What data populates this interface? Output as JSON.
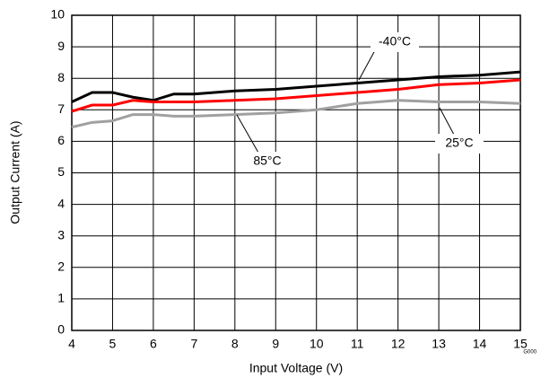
{
  "chart_data": {
    "type": "line",
    "x": [
      4,
      4.5,
      5,
      5.5,
      6,
      6.5,
      7,
      8,
      9,
      10,
      11,
      12,
      13,
      14,
      15
    ],
    "series": [
      {
        "name": "-40°C",
        "color": "#000000",
        "values": [
          7.25,
          7.55,
          7.55,
          7.4,
          7.3,
          7.5,
          7.5,
          7.6,
          7.65,
          7.75,
          7.85,
          7.95,
          8.05,
          8.1,
          8.2
        ]
      },
      {
        "name": "25°C",
        "color": "#ff0000",
        "values": [
          6.95,
          7.15,
          7.15,
          7.3,
          7.25,
          7.25,
          7.25,
          7.3,
          7.35,
          7.45,
          7.55,
          7.65,
          7.8,
          7.85,
          7.95
        ]
      },
      {
        "name": "85°C",
        "color": "#a0a0a0",
        "values": [
          6.45,
          6.6,
          6.65,
          6.85,
          6.85,
          6.8,
          6.8,
          6.85,
          6.9,
          7.0,
          7.2,
          7.3,
          7.25,
          7.25,
          7.2
        ]
      }
    ],
    "xlabel": "Input Voltage (V)",
    "ylabel": "Output Current (A)",
    "xlim": [
      4,
      15
    ],
    "xticks": [
      4,
      5,
      6,
      7,
      8,
      9,
      10,
      11,
      12,
      13,
      14,
      15
    ],
    "ylim": [
      0,
      10
    ],
    "yticks": [
      0,
      1,
      2,
      3,
      4,
      5,
      6,
      7,
      8,
      9,
      10
    ],
    "grid": true,
    "figure_id": "G000"
  }
}
